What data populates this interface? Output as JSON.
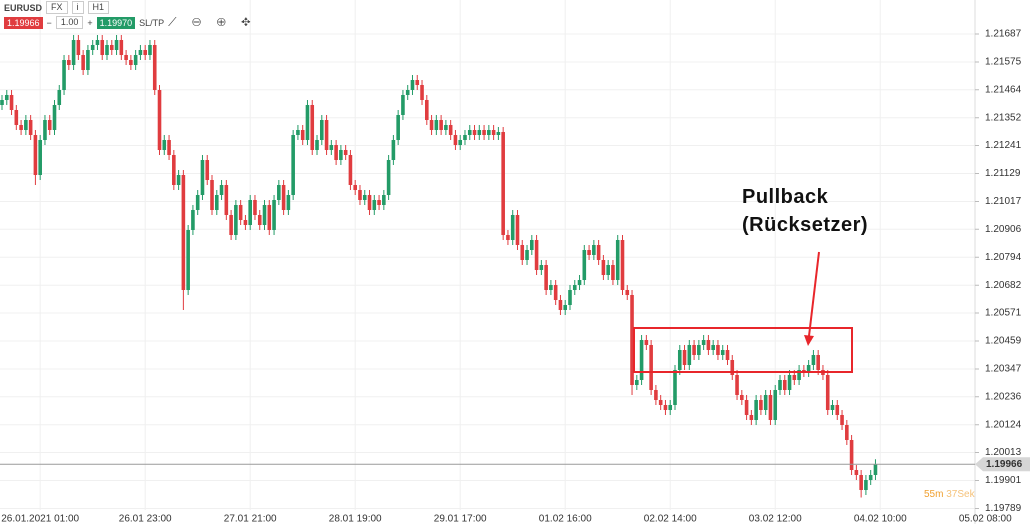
{
  "toolbar": {
    "symbol": "EURUSD",
    "market": "FX",
    "timeframe": "H1",
    "bid": "1.19966",
    "quantity": "1.00",
    "ask": "1.19970",
    "sltp": "SL/TP"
  },
  "chart_data": {
    "type": "candlestick",
    "categories": [
      null,
      null,
      null,
      null,
      null,
      null,
      null,
      null,
      "26.01.2021 01:00",
      null,
      null,
      null,
      null,
      null,
      null,
      null,
      null,
      null,
      null,
      null,
      null,
      null,
      null,
      null,
      null,
      null,
      null,
      null,
      null,
      null,
      "26.01 23:00",
      null,
      null,
      null,
      null,
      null,
      null,
      null,
      null,
      null,
      null,
      null,
      null,
      null,
      null,
      null,
      null,
      null,
      null,
      null,
      null,
      null,
      "27.01 21:00",
      null,
      null,
      null,
      null,
      null,
      null,
      null,
      null,
      null,
      null,
      null,
      null,
      null,
      null,
      null,
      null,
      null,
      null,
      null,
      null,
      null,
      "28.01 19:00",
      null,
      null,
      null,
      null,
      null,
      null,
      null,
      null,
      null,
      null,
      null,
      null,
      null,
      null,
      null,
      null,
      null,
      null,
      null,
      null,
      null,
      "29.01 17:00",
      null,
      null,
      null,
      null,
      null,
      null,
      null,
      null,
      null,
      null,
      null,
      null,
      null,
      null,
      null,
      null,
      null,
      null,
      null,
      null,
      null,
      "01.02 16:00",
      null,
      null,
      null,
      null,
      null,
      null,
      null,
      null,
      null,
      null,
      null,
      null,
      null,
      null,
      null,
      null,
      null,
      null,
      null,
      null,
      null,
      "02.02 14:00",
      null,
      null,
      null,
      null,
      null,
      null,
      null,
      null,
      null,
      null,
      null,
      null,
      null,
      null,
      null,
      null,
      null,
      null,
      null,
      null,
      null,
      "03.02 12:00",
      null,
      null,
      null,
      null,
      null,
      null,
      null,
      null,
      null,
      null,
      null,
      null,
      null,
      null,
      null,
      null,
      null,
      null,
      null,
      null,
      null,
      "04.02 10:00",
      null,
      null,
      null,
      null,
      null,
      null,
      null,
      null,
      null,
      null,
      null,
      null,
      null,
      null,
      null,
      null,
      null,
      null,
      null,
      null,
      null,
      "05.02 08:00"
    ],
    "open": [
      1.21403,
      1.21423,
      1.21443,
      1.21383,
      1.21323,
      1.21303,
      1.21343,
      1.21283,
      1.21123,
      1.21263,
      1.21343,
      1.21303,
      1.21403,
      1.21463,
      1.21583,
      1.21563,
      1.21663,
      1.21603,
      1.21543,
      1.21623,
      1.21643,
      1.21663,
      1.21603,
      1.21643,
      1.21623,
      1.21663,
      1.21603,
      1.21583,
      1.21563,
      1.21603,
      1.21623,
      1.21603,
      1.21643,
      1.21463,
      1.21223,
      1.21263,
      1.21203,
      1.21083,
      1.21123,
      1.20663,
      1.20903,
      1.20983,
      1.21043,
      1.21183,
      1.21103,
      1.20983,
      1.21043,
      1.21083,
      1.20963,
      1.20883,
      1.21003,
      1.20943,
      1.20923,
      1.21023,
      1.20963,
      1.20923,
      1.21003,
      1.20903,
      1.21023,
      1.21083,
      1.20983,
      1.21043,
      1.21283,
      1.21303,
      1.21263,
      1.21403,
      1.21223,
      1.21263,
      1.21343,
      1.21223,
      1.21243,
      1.21183,
      1.21223,
      1.21203,
      1.21083,
      1.21063,
      1.21023,
      1.21043,
      1.20983,
      1.21023,
      1.21003,
      1.21043,
      1.21183,
      1.21263,
      1.21363,
      1.21443,
      1.21463,
      1.21503,
      1.21483,
      1.21423,
      1.21343,
      1.21303,
      1.21343,
      1.21303,
      1.21323,
      1.21283,
      1.21243,
      1.21263,
      1.21283,
      1.21303,
      1.21283,
      1.21303,
      1.21283,
      1.21303,
      1.21283,
      1.21295,
      1.20883,
      1.20863,
      1.20963,
      1.20843,
      1.20783,
      1.20823,
      1.20863,
      1.20743,
      1.20763,
      1.20663,
      1.20683,
      1.20623,
      1.20583,
      1.20603,
      1.20663,
      1.20683,
      1.20703,
      1.20823,
      1.20803,
      1.20843,
      1.20783,
      1.20723,
      1.20763,
      1.20703,
      1.20863,
      1.20663,
      1.20643,
      1.20283,
      1.20303,
      1.20463,
      1.20443,
      1.20263,
      1.20223,
      1.20203,
      1.20183,
      1.20203,
      1.20343,
      1.20423,
      1.20363,
      1.20443,
      1.20403,
      1.20443,
      1.20463,
      1.20423,
      1.20443,
      1.20403,
      1.20423,
      1.20383,
      1.20323,
      1.20243,
      1.20223,
      1.20163,
      1.20143,
      1.20223,
      1.20183,
      1.20243,
      1.20143,
      1.20263,
      1.20303,
      1.20263,
      1.20323,
      1.20303,
      1.20343,
      1.20335,
      1.20363,
      1.20403,
      1.20343,
      1.20323,
      1.20183,
      1.20203,
      1.20163,
      1.20123,
      1.20063,
      1.19943,
      1.19923,
      1.19863,
      1.19903,
      1.19923,
      null,
      null,
      null,
      null,
      null,
      null,
      null,
      null,
      null,
      null,
      null,
      null,
      null,
      null,
      null,
      null,
      null,
      null,
      null,
      null,
      null,
      null,
      null
    ],
    "high": [
      1.21443,
      1.21463,
      1.21463,
      1.21403,
      1.21343,
      1.21363,
      1.21363,
      1.21303,
      1.21283,
      1.21363,
      1.21363,
      1.21423,
      1.21483,
      1.21603,
      1.21603,
      1.21683,
      1.21683,
      1.21623,
      1.21643,
      1.21663,
      1.21683,
      1.21683,
      1.21663,
      1.21663,
      1.21683,
      1.21683,
      1.21623,
      1.21603,
      1.21623,
      1.21643,
      1.21643,
      1.21663,
      1.21663,
      1.21483,
      1.21283,
      1.21283,
      1.21223,
      1.21143,
      1.21143,
      1.20923,
      1.21003,
      1.21063,
      1.21203,
      1.21203,
      1.21123,
      1.21063,
      1.21103,
      1.21103,
      1.20983,
      1.21023,
      1.21023,
      1.20963,
      1.21043,
      1.21043,
      1.20983,
      1.21023,
      1.21023,
      1.21043,
      1.21103,
      1.21103,
      1.21063,
      1.21303,
      1.21323,
      1.21323,
      1.21423,
      1.21423,
      1.21283,
      1.21363,
      1.21363,
      1.21263,
      1.21263,
      1.21243,
      1.21243,
      1.21223,
      1.21103,
      1.21083,
      1.21063,
      1.21063,
      1.21043,
      1.21043,
      1.21063,
      1.21203,
      1.21283,
      1.21383,
      1.21463,
      1.21483,
      1.21523,
      1.21523,
      1.21503,
      1.21443,
      1.21363,
      1.21363,
      1.21363,
      1.21343,
      1.21343,
      1.21303,
      1.21283,
      1.21303,
      1.21323,
      1.21323,
      1.21323,
      1.21323,
      1.21323,
      1.21323,
      1.21315,
      1.21315,
      1.20903,
      1.20983,
      1.20983,
      1.20863,
      1.20843,
      1.20883,
      1.20883,
      1.20783,
      1.20783,
      1.20703,
      1.20703,
      1.20643,
      1.20623,
      1.20683,
      1.20703,
      1.20723,
      1.20843,
      1.20843,
      1.20863,
      1.20863,
      1.20803,
      1.20783,
      1.20783,
      1.20883,
      1.20883,
      1.20683,
      1.20663,
      1.20323,
      1.20483,
      1.20483,
      1.20463,
      1.20283,
      1.20243,
      1.20223,
      1.20223,
      1.20363,
      1.20443,
      1.20443,
      1.20463,
      1.20463,
      1.20463,
      1.20483,
      1.20483,
      1.20463,
      1.20463,
      1.20443,
      1.20443,
      1.20403,
      1.20343,
      1.20263,
      1.20243,
      1.20183,
      1.20243,
      1.20243,
      1.20263,
      1.20263,
      1.20283,
      1.20323,
      1.20323,
      1.20343,
      1.20343,
      1.20363,
      1.20363,
      1.20383,
      1.20423,
      1.20423,
      1.20363,
      1.20343,
      1.20223,
      1.20223,
      1.20183,
      1.20143,
      1.20083,
      1.19963,
      1.19943,
      1.19923,
      1.19943,
      1.19986,
      null,
      null,
      null,
      null,
      null,
      null,
      null,
      null,
      null,
      null,
      null,
      null,
      null,
      null,
      null,
      null,
      null,
      null,
      null,
      null,
      null,
      null,
      null
    ],
    "low": [
      1.21383,
      1.21403,
      1.21363,
      1.21303,
      1.21283,
      1.21283,
      1.21263,
      1.21083,
      1.21103,
      1.21243,
      1.21283,
      1.21283,
      1.21383,
      1.21443,
      1.21543,
      1.21543,
      1.21583,
      1.21523,
      1.21523,
      1.21603,
      1.21623,
      1.21583,
      1.21583,
      1.21603,
      1.21603,
      1.21583,
      1.21563,
      1.21543,
      1.21543,
      1.21583,
      1.21583,
      1.21583,
      1.21443,
      1.21203,
      1.21203,
      1.21183,
      1.21063,
      1.21063,
      1.20583,
      1.20643,
      1.20883,
      1.20963,
      1.21023,
      1.21083,
      1.20963,
      1.20963,
      1.21023,
      1.20943,
      1.20863,
      1.20863,
      1.20923,
      1.20903,
      1.20903,
      1.20943,
      1.20903,
      1.20903,
      1.20883,
      1.20883,
      1.21003,
      1.20963,
      1.20963,
      1.21023,
      1.21263,
      1.21243,
      1.21243,
      1.21203,
      1.21203,
      1.21243,
      1.21203,
      1.21203,
      1.21163,
      1.21163,
      1.21183,
      1.21063,
      1.21043,
      1.21003,
      1.21003,
      1.20963,
      1.20963,
      1.20983,
      1.20983,
      1.21023,
      1.21163,
      1.21243,
      1.21343,
      1.21423,
      1.21443,
      1.21463,
      1.21403,
      1.21323,
      1.21283,
      1.21283,
      1.21283,
      1.21283,
      1.21263,
      1.21223,
      1.21223,
      1.21243,
      1.21263,
      1.21263,
      1.21263,
      1.21263,
      1.21263,
      1.21263,
      1.21263,
      1.20863,
      1.20843,
      1.20843,
      1.20823,
      1.20763,
      1.20763,
      1.20803,
      1.20723,
      1.20723,
      1.20643,
      1.20643,
      1.20603,
      1.20563,
      1.20563,
      1.20583,
      1.20643,
      1.20663,
      1.20683,
      1.20783,
      1.20783,
      1.20763,
      1.20703,
      1.20703,
      1.20683,
      1.20683,
      1.20643,
      1.20623,
      1.20243,
      1.20263,
      1.20283,
      1.20423,
      1.20243,
      1.20203,
      1.20183,
      1.20163,
      1.20163,
      1.20183,
      1.20323,
      1.20343,
      1.20343,
      1.20383,
      1.20383,
      1.20423,
      1.20403,
      1.20403,
      1.20383,
      1.20383,
      1.20363,
      1.20303,
      1.20223,
      1.20203,
      1.20143,
      1.20123,
      1.20123,
      1.20163,
      1.20163,
      1.20123,
      1.20123,
      1.20243,
      1.20243,
      1.20243,
      1.20283,
      1.20283,
      1.20315,
      1.20315,
      1.20343,
      1.20323,
      1.20303,
      1.20163,
      1.20163,
      1.20143,
      1.20103,
      1.20043,
      1.19923,
      1.19903,
      1.19833,
      1.19843,
      1.19883,
      1.19903,
      null,
      null,
      null,
      null,
      null,
      null,
      null,
      null,
      null,
      null,
      null,
      null,
      null,
      null,
      null,
      null,
      null,
      null,
      null,
      null,
      null,
      null,
      null
    ],
    "close": [
      1.21423,
      1.21443,
      1.21383,
      1.21323,
      1.21303,
      1.21343,
      1.21283,
      1.21123,
      1.21263,
      1.21343,
      1.21303,
      1.21403,
      1.21463,
      1.21583,
      1.21563,
      1.21663,
      1.21603,
      1.21543,
      1.21623,
      1.21643,
      1.21663,
      1.21603,
      1.21643,
      1.21623,
      1.21663,
      1.21603,
      1.21583,
      1.21563,
      1.21603,
      1.21623,
      1.21603,
      1.21643,
      1.21463,
      1.21223,
      1.21263,
      1.21203,
      1.21083,
      1.21123,
      1.20663,
      1.20903,
      1.20983,
      1.21043,
      1.21183,
      1.21103,
      1.20983,
      1.21043,
      1.21083,
      1.20963,
      1.20883,
      1.21003,
      1.20943,
      1.20923,
      1.21023,
      1.20963,
      1.20923,
      1.21003,
      1.20903,
      1.21023,
      1.21083,
      1.20983,
      1.21043,
      1.21283,
      1.21303,
      1.21263,
      1.21403,
      1.21223,
      1.21263,
      1.21343,
      1.21223,
      1.21243,
      1.21183,
      1.21223,
      1.21203,
      1.21083,
      1.21063,
      1.21023,
      1.21043,
      1.20983,
      1.21023,
      1.21003,
      1.21043,
      1.21183,
      1.21263,
      1.21363,
      1.21443,
      1.21463,
      1.21503,
      1.21483,
      1.21423,
      1.21343,
      1.21303,
      1.21343,
      1.21303,
      1.21323,
      1.21283,
      1.21243,
      1.21263,
      1.21283,
      1.21303,
      1.21283,
      1.21303,
      1.21283,
      1.21303,
      1.21283,
      1.21295,
      1.20883,
      1.20863,
      1.20963,
      1.20843,
      1.20783,
      1.20823,
      1.20863,
      1.20743,
      1.20763,
      1.20663,
      1.20683,
      1.20623,
      1.20583,
      1.20603,
      1.20663,
      1.20683,
      1.20703,
      1.20823,
      1.20803,
      1.20843,
      1.20783,
      1.20723,
      1.20763,
      1.20703,
      1.20863,
      1.20663,
      1.20643,
      1.20283,
      1.20303,
      1.20463,
      1.20443,
      1.20263,
      1.20223,
      1.20203,
      1.20183,
      1.20203,
      1.20343,
      1.20423,
      1.20363,
      1.20443,
      1.20403,
      1.20443,
      1.20463,
      1.20423,
      1.20443,
      1.20403,
      1.20423,
      1.20383,
      1.20323,
      1.20243,
      1.20223,
      1.20163,
      1.20143,
      1.20223,
      1.20183,
      1.20243,
      1.20143,
      1.20263,
      1.20303,
      1.20263,
      1.20323,
      1.20303,
      1.20343,
      1.20335,
      1.20363,
      1.20403,
      1.20343,
      1.20323,
      1.20183,
      1.20203,
      1.20163,
      1.20123,
      1.20063,
      1.19943,
      1.19923,
      1.19863,
      1.19903,
      1.19923,
      1.19966,
      null,
      null,
      null,
      null,
      null,
      null,
      null,
      null,
      null,
      null,
      null,
      null,
      null,
      null,
      null,
      null,
      null,
      null,
      null,
      null,
      null,
      null,
      null
    ],
    "up_color": "#239b67",
    "down_color": "#e03c3f",
    "ylim": [
      1.19783,
      1.21823
    ],
    "yticks": [
      1.21687,
      1.21575,
      1.21464,
      1.21352,
      1.21241,
      1.21129,
      1.21017,
      1.20906,
      1.20794,
      1.20682,
      1.20571,
      1.20459,
      1.20347,
      1.20236,
      1.20124,
      1.20013,
      1.19901,
      1.19789
    ],
    "grid": true,
    "current_price": 1.19966,
    "annotation": [
      "Pullback",
      "(Rücksetzer)"
    ],
    "countdown": {
      "minutes": "55m",
      "seconds": "37Sek"
    }
  }
}
